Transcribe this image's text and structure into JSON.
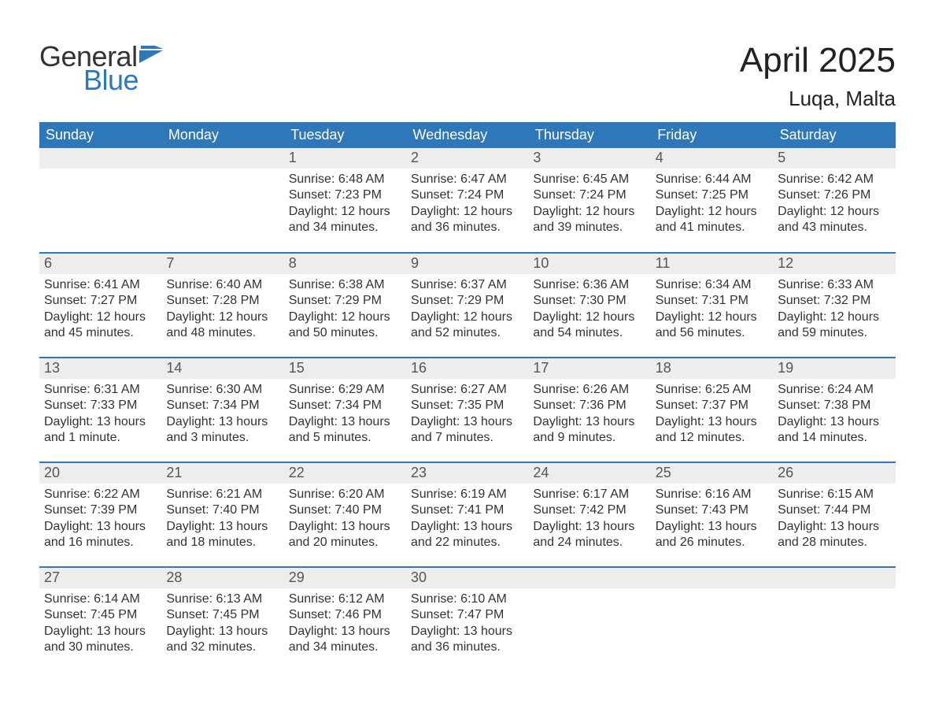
{
  "logo": {
    "word1": "General",
    "word2": "Blue",
    "flag_color": "#2e77b8",
    "text_color": "#333333"
  },
  "title": "April 2025",
  "location": "Luqa, Malta",
  "style": {
    "header_bg": "#2e77b8",
    "header_text": "#ffffff",
    "daynum_bg": "#ededed",
    "separator_color": "#2e77b8",
    "body_text": "#333333",
    "page_bg": "#ffffff",
    "title_fontsize": 44,
    "location_fontsize": 26,
    "header_fontsize": 18,
    "daynum_fontsize": 18,
    "body_fontsize": 16
  },
  "weekdays": [
    "Sunday",
    "Monday",
    "Tuesday",
    "Wednesday",
    "Thursday",
    "Friday",
    "Saturday"
  ],
  "weeks": [
    [
      {
        "empty": true
      },
      {
        "empty": true
      },
      {
        "day": "1",
        "sunrise": "Sunrise: 6:48 AM",
        "sunset": "Sunset: 7:23 PM",
        "daylight": "Daylight: 12 hours and 34 minutes."
      },
      {
        "day": "2",
        "sunrise": "Sunrise: 6:47 AM",
        "sunset": "Sunset: 7:24 PM",
        "daylight": "Daylight: 12 hours and 36 minutes."
      },
      {
        "day": "3",
        "sunrise": "Sunrise: 6:45 AM",
        "sunset": "Sunset: 7:24 PM",
        "daylight": "Daylight: 12 hours and 39 minutes."
      },
      {
        "day": "4",
        "sunrise": "Sunrise: 6:44 AM",
        "sunset": "Sunset: 7:25 PM",
        "daylight": "Daylight: 12 hours and 41 minutes."
      },
      {
        "day": "5",
        "sunrise": "Sunrise: 6:42 AM",
        "sunset": "Sunset: 7:26 PM",
        "daylight": "Daylight: 12 hours and 43 minutes."
      }
    ],
    [
      {
        "day": "6",
        "sunrise": "Sunrise: 6:41 AM",
        "sunset": "Sunset: 7:27 PM",
        "daylight": "Daylight: 12 hours and 45 minutes."
      },
      {
        "day": "7",
        "sunrise": "Sunrise: 6:40 AM",
        "sunset": "Sunset: 7:28 PM",
        "daylight": "Daylight: 12 hours and 48 minutes."
      },
      {
        "day": "8",
        "sunrise": "Sunrise: 6:38 AM",
        "sunset": "Sunset: 7:29 PM",
        "daylight": "Daylight: 12 hours and 50 minutes."
      },
      {
        "day": "9",
        "sunrise": "Sunrise: 6:37 AM",
        "sunset": "Sunset: 7:29 PM",
        "daylight": "Daylight: 12 hours and 52 minutes."
      },
      {
        "day": "10",
        "sunrise": "Sunrise: 6:36 AM",
        "sunset": "Sunset: 7:30 PM",
        "daylight": "Daylight: 12 hours and 54 minutes."
      },
      {
        "day": "11",
        "sunrise": "Sunrise: 6:34 AM",
        "sunset": "Sunset: 7:31 PM",
        "daylight": "Daylight: 12 hours and 56 minutes."
      },
      {
        "day": "12",
        "sunrise": "Sunrise: 6:33 AM",
        "sunset": "Sunset: 7:32 PM",
        "daylight": "Daylight: 12 hours and 59 minutes."
      }
    ],
    [
      {
        "day": "13",
        "sunrise": "Sunrise: 6:31 AM",
        "sunset": "Sunset: 7:33 PM",
        "daylight": "Daylight: 13 hours and 1 minute."
      },
      {
        "day": "14",
        "sunrise": "Sunrise: 6:30 AM",
        "sunset": "Sunset: 7:34 PM",
        "daylight": "Daylight: 13 hours and 3 minutes."
      },
      {
        "day": "15",
        "sunrise": "Sunrise: 6:29 AM",
        "sunset": "Sunset: 7:34 PM",
        "daylight": "Daylight: 13 hours and 5 minutes."
      },
      {
        "day": "16",
        "sunrise": "Sunrise: 6:27 AM",
        "sunset": "Sunset: 7:35 PM",
        "daylight": "Daylight: 13 hours and 7 minutes."
      },
      {
        "day": "17",
        "sunrise": "Sunrise: 6:26 AM",
        "sunset": "Sunset: 7:36 PM",
        "daylight": "Daylight: 13 hours and 9 minutes."
      },
      {
        "day": "18",
        "sunrise": "Sunrise: 6:25 AM",
        "sunset": "Sunset: 7:37 PM",
        "daylight": "Daylight: 13 hours and 12 minutes."
      },
      {
        "day": "19",
        "sunrise": "Sunrise: 6:24 AM",
        "sunset": "Sunset: 7:38 PM",
        "daylight": "Daylight: 13 hours and 14 minutes."
      }
    ],
    [
      {
        "day": "20",
        "sunrise": "Sunrise: 6:22 AM",
        "sunset": "Sunset: 7:39 PM",
        "daylight": "Daylight: 13 hours and 16 minutes."
      },
      {
        "day": "21",
        "sunrise": "Sunrise: 6:21 AM",
        "sunset": "Sunset: 7:40 PM",
        "daylight": "Daylight: 13 hours and 18 minutes."
      },
      {
        "day": "22",
        "sunrise": "Sunrise: 6:20 AM",
        "sunset": "Sunset: 7:40 PM",
        "daylight": "Daylight: 13 hours and 20 minutes."
      },
      {
        "day": "23",
        "sunrise": "Sunrise: 6:19 AM",
        "sunset": "Sunset: 7:41 PM",
        "daylight": "Daylight: 13 hours and 22 minutes."
      },
      {
        "day": "24",
        "sunrise": "Sunrise: 6:17 AM",
        "sunset": "Sunset: 7:42 PM",
        "daylight": "Daylight: 13 hours and 24 minutes."
      },
      {
        "day": "25",
        "sunrise": "Sunrise: 6:16 AM",
        "sunset": "Sunset: 7:43 PM",
        "daylight": "Daylight: 13 hours and 26 minutes."
      },
      {
        "day": "26",
        "sunrise": "Sunrise: 6:15 AM",
        "sunset": "Sunset: 7:44 PM",
        "daylight": "Daylight: 13 hours and 28 minutes."
      }
    ],
    [
      {
        "day": "27",
        "sunrise": "Sunrise: 6:14 AM",
        "sunset": "Sunset: 7:45 PM",
        "daylight": "Daylight: 13 hours and 30 minutes."
      },
      {
        "day": "28",
        "sunrise": "Sunrise: 6:13 AM",
        "sunset": "Sunset: 7:45 PM",
        "daylight": "Daylight: 13 hours and 32 minutes."
      },
      {
        "day": "29",
        "sunrise": "Sunrise: 6:12 AM",
        "sunset": "Sunset: 7:46 PM",
        "daylight": "Daylight: 13 hours and 34 minutes."
      },
      {
        "day": "30",
        "sunrise": "Sunrise: 6:10 AM",
        "sunset": "Sunset: 7:47 PM",
        "daylight": "Daylight: 13 hours and 36 minutes."
      },
      {
        "empty": true
      },
      {
        "empty": true
      },
      {
        "empty": true
      }
    ]
  ]
}
